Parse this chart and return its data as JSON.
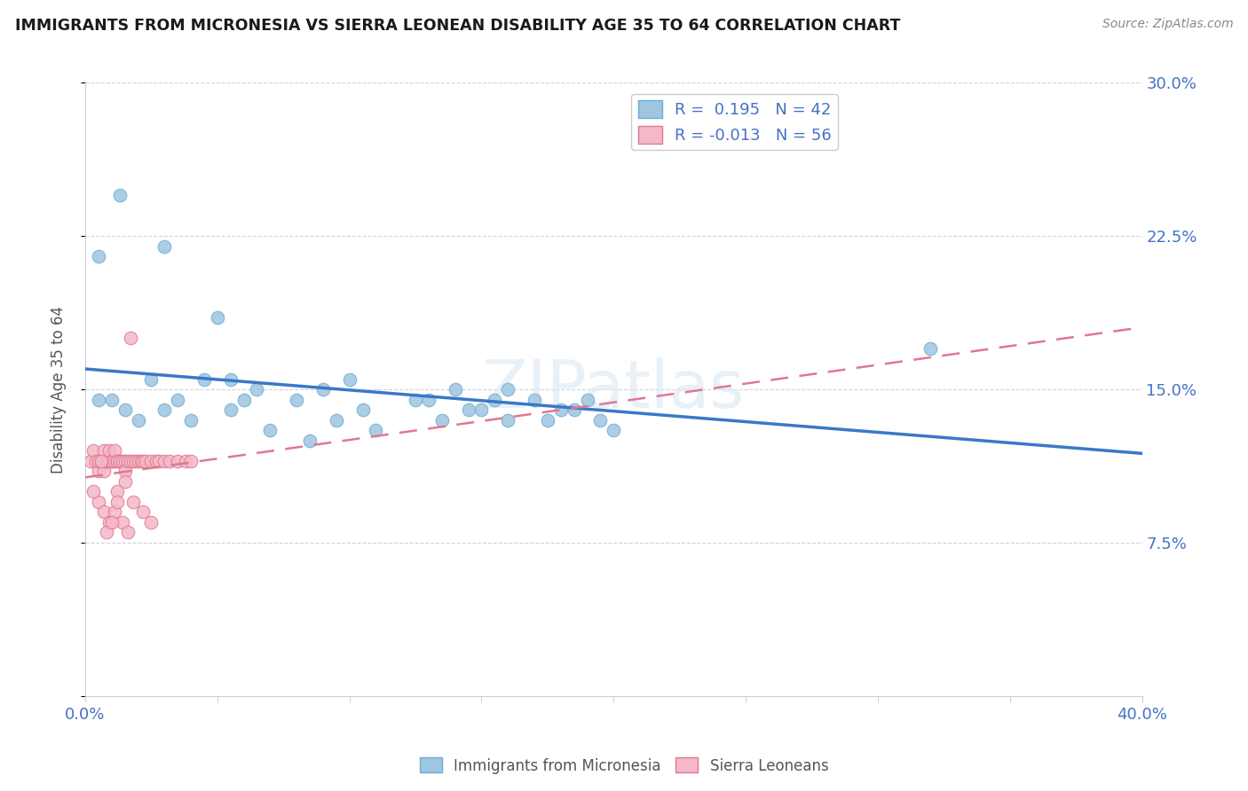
{
  "title": "IMMIGRANTS FROM MICRONESIA VS SIERRA LEONEAN DISABILITY AGE 35 TO 64 CORRELATION CHART",
  "source": "Source: ZipAtlas.com",
  "ylabel": "Disability Age 35 to 64",
  "xlim": [
    0.0,
    0.4
  ],
  "ylim": [
    0.0,
    0.3
  ],
  "legend1_R": "0.195",
  "legend1_N": "42",
  "legend2_R": "-0.013",
  "legend2_N": "56",
  "label_micronesia": "Immigrants from Micronesia",
  "label_sierra": "Sierra Leoneans",
  "watermark": "ZIPatlas",
  "blue_face": "#9fc5e0",
  "blue_edge": "#6baed6",
  "blue_trend": "#3a78c9",
  "pink_face": "#f4b8c8",
  "pink_edge": "#e07890",
  "pink_trend": "#e07890",
  "grid_color": "#c8cfe0",
  "tick_color": "#4472c4",
  "micro_x": [
    0.005,
    0.013,
    0.03,
    0.05,
    0.025,
    0.035,
    0.055,
    0.065,
    0.08,
    0.09,
    0.095,
    0.1,
    0.105,
    0.11,
    0.125,
    0.13,
    0.135,
    0.14,
    0.145,
    0.15,
    0.155,
    0.16,
    0.16,
    0.17,
    0.175,
    0.18,
    0.185,
    0.19,
    0.195,
    0.2,
    0.005,
    0.01,
    0.015,
    0.02,
    0.03,
    0.04,
    0.045,
    0.055,
    0.06,
    0.07,
    0.085,
    0.32
  ],
  "micro_y": [
    0.215,
    0.245,
    0.22,
    0.185,
    0.155,
    0.145,
    0.155,
    0.15,
    0.145,
    0.15,
    0.135,
    0.155,
    0.14,
    0.13,
    0.145,
    0.145,
    0.135,
    0.15,
    0.14,
    0.14,
    0.145,
    0.135,
    0.15,
    0.145,
    0.135,
    0.14,
    0.14,
    0.145,
    0.135,
    0.13,
    0.145,
    0.145,
    0.14,
    0.135,
    0.14,
    0.135,
    0.155,
    0.14,
    0.145,
    0.13,
    0.125,
    0.17
  ],
  "sierra_x": [
    0.002,
    0.003,
    0.004,
    0.005,
    0.005,
    0.006,
    0.007,
    0.007,
    0.008,
    0.008,
    0.009,
    0.009,
    0.01,
    0.01,
    0.011,
    0.011,
    0.012,
    0.012,
    0.013,
    0.013,
    0.014,
    0.015,
    0.015,
    0.016,
    0.017,
    0.018,
    0.019,
    0.02,
    0.021,
    0.022,
    0.023,
    0.025,
    0.027,
    0.028,
    0.03,
    0.032,
    0.035,
    0.038,
    0.04,
    0.012,
    0.018,
    0.022,
    0.025,
    0.005,
    0.007,
    0.009,
    0.011,
    0.014,
    0.016,
    0.008,
    0.01,
    0.012,
    0.015,
    0.017,
    0.003,
    0.006
  ],
  "sierra_y": [
    0.115,
    0.12,
    0.115,
    0.11,
    0.115,
    0.115,
    0.12,
    0.11,
    0.115,
    0.115,
    0.115,
    0.12,
    0.115,
    0.115,
    0.115,
    0.12,
    0.115,
    0.115,
    0.115,
    0.115,
    0.115,
    0.115,
    0.11,
    0.115,
    0.115,
    0.115,
    0.115,
    0.115,
    0.115,
    0.115,
    0.115,
    0.115,
    0.115,
    0.115,
    0.115,
    0.115,
    0.115,
    0.115,
    0.115,
    0.1,
    0.095,
    0.09,
    0.085,
    0.095,
    0.09,
    0.085,
    0.09,
    0.085,
    0.08,
    0.08,
    0.085,
    0.095,
    0.105,
    0.175,
    0.1,
    0.115
  ]
}
